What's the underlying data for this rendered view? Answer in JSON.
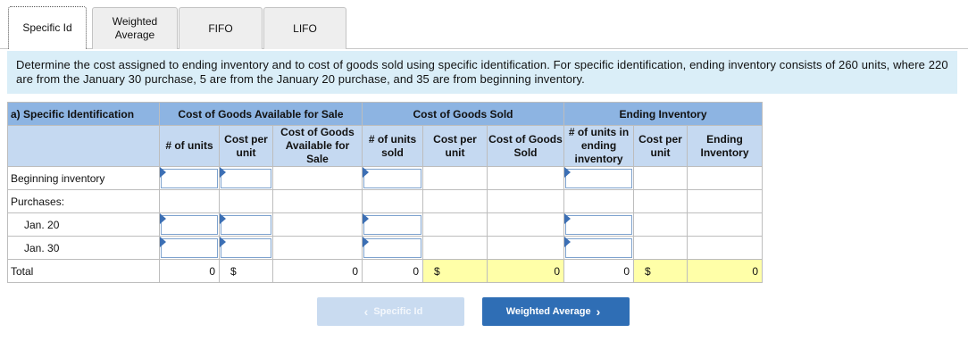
{
  "tabs": [
    {
      "label": "Specific Id",
      "active": true
    },
    {
      "label": "Weighted\nAverage",
      "active": false
    },
    {
      "label": "FIFO",
      "active": false
    },
    {
      "label": "LIFO",
      "active": false
    }
  ],
  "instruction": "Determine the cost assigned to ending inventory and to cost of goods sold using specific identification. For specific identification, ending inventory consists of 260 units, where 220 are from the January 30 purchase, 5 are from the January 20 purchase, and 35 are from beginning inventory.",
  "table": {
    "title": "a) Specific Identification",
    "group_headers": [
      "Cost of Goods Available for Sale",
      "Cost of Goods Sold",
      "Ending Inventory"
    ],
    "col_headers": [
      "# of units",
      "Cost per unit",
      "Cost of Goods Available for Sale",
      "# of units sold",
      "Cost per unit",
      "Cost of Goods Sold",
      "# of units in ending inventory",
      "Cost per unit",
      "Ending Inventory"
    ],
    "rows": [
      "Beginning inventory",
      "Purchases:",
      "Jan. 20",
      "Jan. 30"
    ],
    "total_label": "Total",
    "totals": {
      "units": "0",
      "cogas_symbol": "$",
      "cogas": "0",
      "units_sold": "0",
      "cogs_symbol": "$",
      "cogs": "0",
      "units_ending": "0",
      "ending_symbol": "$",
      "ending": "0"
    }
  },
  "nav": {
    "prev_label": "Specific Id",
    "next_label": "Weighted Average"
  },
  "colors": {
    "header_dark": "#8db4e2",
    "header_light": "#c5d9f1",
    "instruction_bg": "#daeef8",
    "total_highlight": "#ffffa8",
    "next_button": "#2f6eb5"
  }
}
